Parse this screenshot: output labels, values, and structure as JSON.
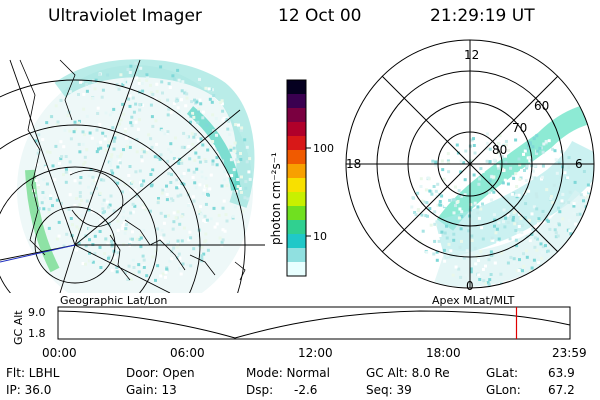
{
  "header": {
    "instrument": "Ultraviolet Imager",
    "date": "12 Oct 00",
    "time": "21:29:19 UT"
  },
  "colorbar": {
    "unit_label": "photon cm⁻²s⁻¹",
    "ticks": [
      "100",
      "10"
    ],
    "colors": [
      "#050020",
      "#3a0050",
      "#7a0040",
      "#b0002a",
      "#d81818",
      "#f05a00",
      "#f8a000",
      "#f8e000",
      "#c8f000",
      "#70e020",
      "#30d090",
      "#20c8c8",
      "#90e0e0",
      "#e8ffff"
    ]
  },
  "polar_plot": {
    "mlt_labels": {
      "top": "12",
      "left": "18",
      "right": "6",
      "bottom": "0"
    },
    "lat_labels": [
      "60",
      "70",
      "80"
    ]
  },
  "timeline": {
    "left_label": "Geographic Lat/Lon",
    "right_label": "Apex MLat/MLT",
    "y_axis_label": "GC Alt",
    "y_ticks": [
      "9.0",
      "1.8"
    ],
    "x_ticks": [
      "00:00",
      "06:00",
      "12:00",
      "18:00",
      "23:59"
    ],
    "current_time_hours": 21.49
  },
  "status": {
    "col1": [
      "Flt: LBHL",
      "IP: 36.0"
    ],
    "col2": [
      "Door: Open",
      "Gain: 13"
    ],
    "col3": [
      "Mode: Normal",
      "Dsp:",
      "-2.6"
    ],
    "col4": [
      "GC Alt: 8.0 Re",
      "Seq: 39"
    ],
    "col5": [
      "GLat:",
      "63.9",
      "GLon:",
      "67.2"
    ]
  }
}
